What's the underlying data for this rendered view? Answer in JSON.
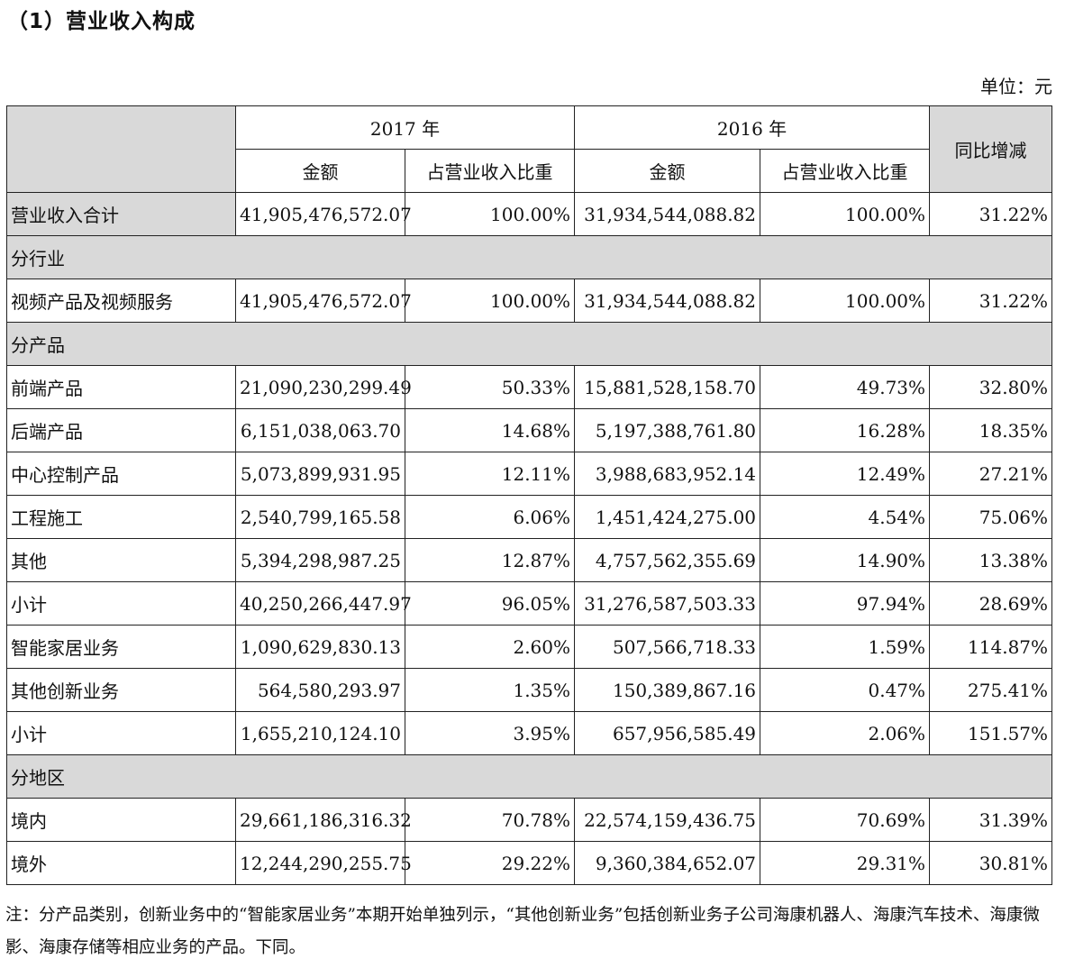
{
  "heading": "（1）营业收入构成",
  "unit": "单位：元",
  "table": {
    "year_a": "2017 年",
    "year_b": "2016 年",
    "sub_amount": "金额",
    "sub_ratio": "占营业收入比重",
    "yoy": "同比增减",
    "rows": [
      {
        "type": "data",
        "label": "营业收入合计",
        "label_gray": true,
        "indent": false,
        "a_amt": "41,905,476,572.07",
        "a_pct": "100.00%",
        "b_amt": "31,934,544,088.82",
        "b_pct": "100.00%",
        "yoy": "31.22%"
      },
      {
        "type": "section",
        "label": "分行业"
      },
      {
        "type": "data",
        "label": "视频产品及视频服务",
        "label_gray": false,
        "indent": false,
        "a_amt": "41,905,476,572.07",
        "a_pct": "100.00%",
        "b_amt": "31,934,544,088.82",
        "b_pct": "100.00%",
        "yoy": "31.22%"
      },
      {
        "type": "section",
        "label": "分产品"
      },
      {
        "type": "data",
        "label": "前端产品",
        "label_gray": false,
        "indent": false,
        "a_amt": "21,090,230,299.49",
        "a_pct": "50.33%",
        "b_amt": "15,881,528,158.70",
        "b_pct": "49.73%",
        "yoy": "32.80%"
      },
      {
        "type": "data",
        "label": "后端产品",
        "label_gray": false,
        "indent": false,
        "a_amt": "6,151,038,063.70",
        "a_pct": "14.68%",
        "b_amt": "5,197,388,761.80",
        "b_pct": "16.28%",
        "yoy": "18.35%"
      },
      {
        "type": "data",
        "label": "中心控制产品",
        "label_gray": false,
        "indent": false,
        "a_amt": "5,073,899,931.95",
        "a_pct": "12.11%",
        "b_amt": "3,988,683,952.14",
        "b_pct": "12.49%",
        "yoy": "27.21%"
      },
      {
        "type": "data",
        "label": "工程施工",
        "label_gray": false,
        "indent": false,
        "a_amt": "2,540,799,165.58",
        "a_pct": "6.06%",
        "b_amt": "1,451,424,275.00",
        "b_pct": "4.54%",
        "yoy": "75.06%"
      },
      {
        "type": "data",
        "label": "其他",
        "label_gray": false,
        "indent": false,
        "a_amt": "5,394,298,987.25",
        "a_pct": "12.87%",
        "b_amt": "4,757,562,355.69",
        "b_pct": "14.90%",
        "yoy": "13.38%"
      },
      {
        "type": "data",
        "label": "小计",
        "label_gray": false,
        "indent": true,
        "a_amt": "40,250,266,447.97",
        "a_pct": "96.05%",
        "b_amt": "31,276,587,503.33",
        "b_pct": "97.94%",
        "yoy": "28.69%"
      },
      {
        "type": "data",
        "label": "智能家居业务",
        "label_gray": false,
        "indent": false,
        "a_amt": "1,090,629,830.13",
        "a_pct": "2.60%",
        "b_amt": "507,566,718.33",
        "b_pct": "1.59%",
        "yoy": "114.87%"
      },
      {
        "type": "data",
        "label": "其他创新业务",
        "label_gray": false,
        "indent": false,
        "a_amt": "564,580,293.97",
        "a_pct": "1.35%",
        "b_amt": "150,389,867.16",
        "b_pct": "0.47%",
        "yoy": "275.41%"
      },
      {
        "type": "data",
        "label": "小计",
        "label_gray": false,
        "indent": true,
        "a_amt": "1,655,210,124.10",
        "a_pct": "3.95%",
        "b_amt": "657,956,585.49",
        "b_pct": "2.06%",
        "yoy": "151.57%"
      },
      {
        "type": "section",
        "label": "分地区"
      },
      {
        "type": "data",
        "label": "境内",
        "label_gray": false,
        "indent": false,
        "a_amt": "29,661,186,316.32",
        "a_pct": "70.78%",
        "b_amt": "22,574,159,436.75",
        "b_pct": "70.69%",
        "yoy": "31.39%"
      },
      {
        "type": "data",
        "label": "境外",
        "label_gray": false,
        "indent": false,
        "a_amt": "12,244,290,255.75",
        "a_pct": "29.22%",
        "b_amt": "9,360,384,652.07",
        "b_pct": "29.31%",
        "yoy": "30.81%"
      }
    ]
  },
  "note": "注：分产品类别，创新业务中的“智能家居业务”本期开始单独列示，“其他创新业务”包括创新业务子公司海康机器人、海康汽车技术、海康微影、海康存储等相应业务的产品。下同。"
}
